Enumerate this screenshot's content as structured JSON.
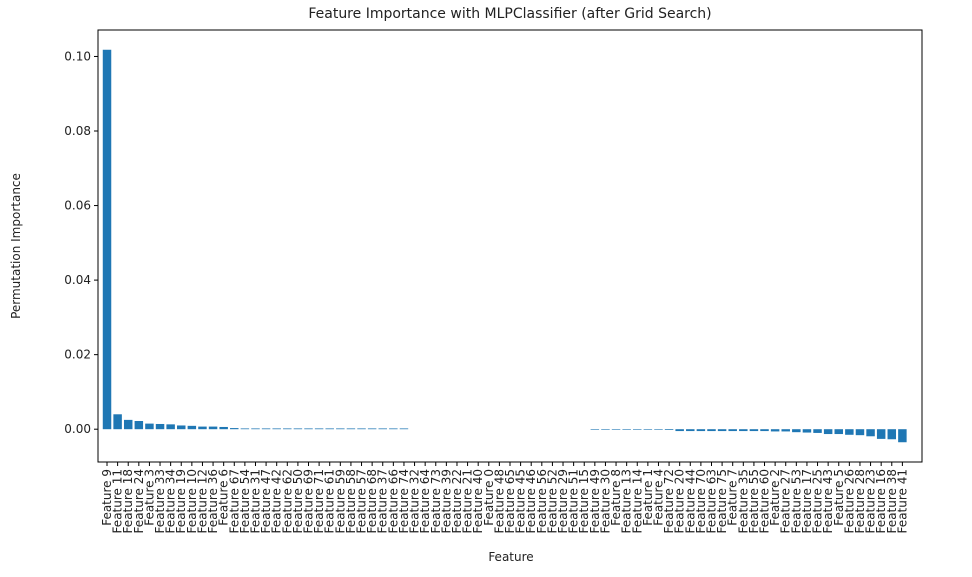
{
  "chart_data": {
    "type": "bar",
    "title": "Feature Importance with MLPClassifier (after Grid Search)",
    "x_label": "Feature",
    "y_label": "Permutation Importance",
    "color": "#1f77b4",
    "categories": [
      "Feature 9",
      "Feature 11",
      "Feature 18",
      "Feature 24",
      "Feature 3",
      "Feature 33",
      "Feature 34",
      "Feature 19",
      "Feature 10",
      "Feature 12",
      "Feature 36",
      "Feature 6",
      "Feature 67",
      "Feature 54",
      "Feature 31",
      "Feature 47",
      "Feature 42",
      "Feature 62",
      "Feature 50",
      "Feature 69",
      "Feature 71",
      "Feature 61",
      "Feature 59",
      "Feature 58",
      "Feature 57",
      "Feature 68",
      "Feature 37",
      "Feature 66",
      "Feature 74",
      "Feature 32",
      "Feature 64",
      "Feature 73",
      "Feature 39",
      "Feature 22",
      "Feature 21",
      "Feature 40",
      "Feature 0",
      "Feature 48",
      "Feature 65",
      "Feature 45",
      "Feature 46",
      "Feature 56",
      "Feature 52",
      "Feature 29",
      "Feature 51",
      "Feature 15",
      "Feature 49",
      "Feature 30",
      "Feature 8",
      "Feature 13",
      "Feature 14",
      "Feature 1",
      "Feature 4",
      "Feature 72",
      "Feature 20",
      "Feature 44",
      "Feature 70",
      "Feature 63",
      "Feature 75",
      "Feature 7",
      "Feature 35",
      "Feature 55",
      "Feature 60",
      "Feature 2",
      "Feature 27",
      "Feature 53",
      "Feature 17",
      "Feature 25",
      "Feature 43",
      "Feature 5",
      "Feature 26",
      "Feature 28",
      "Feature 23",
      "Feature 16",
      "Feature 38",
      "Feature 41"
    ],
    "values": [
      0.1018,
      0.004,
      0.0025,
      0.0022,
      0.0015,
      0.0014,
      0.0013,
      0.001,
      0.0009,
      0.0007,
      0.0007,
      0.0006,
      0.0003,
      0.0002,
      0.0002,
      0.0002,
      0.0002,
      0.0002,
      0.0002,
      0.0002,
      0.0002,
      0.0002,
      0.0002,
      0.0002,
      0.0002,
      0.0002,
      0.0002,
      0.0002,
      0.0002,
      0,
      0,
      0,
      0,
      0,
      0,
      0,
      0,
      0,
      0,
      0,
      0,
      0,
      0,
      0,
      0,
      0,
      -0.0001,
      -0.0001,
      -0.0001,
      -0.0001,
      -0.0001,
      -0.0001,
      -0.0001,
      -0.0002,
      -0.0005,
      -0.0005,
      -0.0005,
      -0.0005,
      -0.0005,
      -0.0005,
      -0.0005,
      -0.0005,
      -0.0005,
      -0.0006,
      -0.0006,
      -0.0008,
      -0.0009,
      -0.001,
      -0.0013,
      -0.0013,
      -0.0015,
      -0.0016,
      -0.0019,
      -0.0026,
      -0.0027,
      -0.0035
    ],
    "ylim": [
      -0.0088,
      0.1071
    ],
    "yticks": [
      {
        "value": 0,
        "label": "0.00"
      },
      {
        "value": 0.02,
        "label": "0.02"
      },
      {
        "value": 0.04,
        "label": "0.04"
      },
      {
        "value": 0.06,
        "label": "0.06"
      },
      {
        "value": 0.08,
        "label": "0.08"
      },
      {
        "value": 0.1,
        "label": "0.10"
      }
    ]
  }
}
